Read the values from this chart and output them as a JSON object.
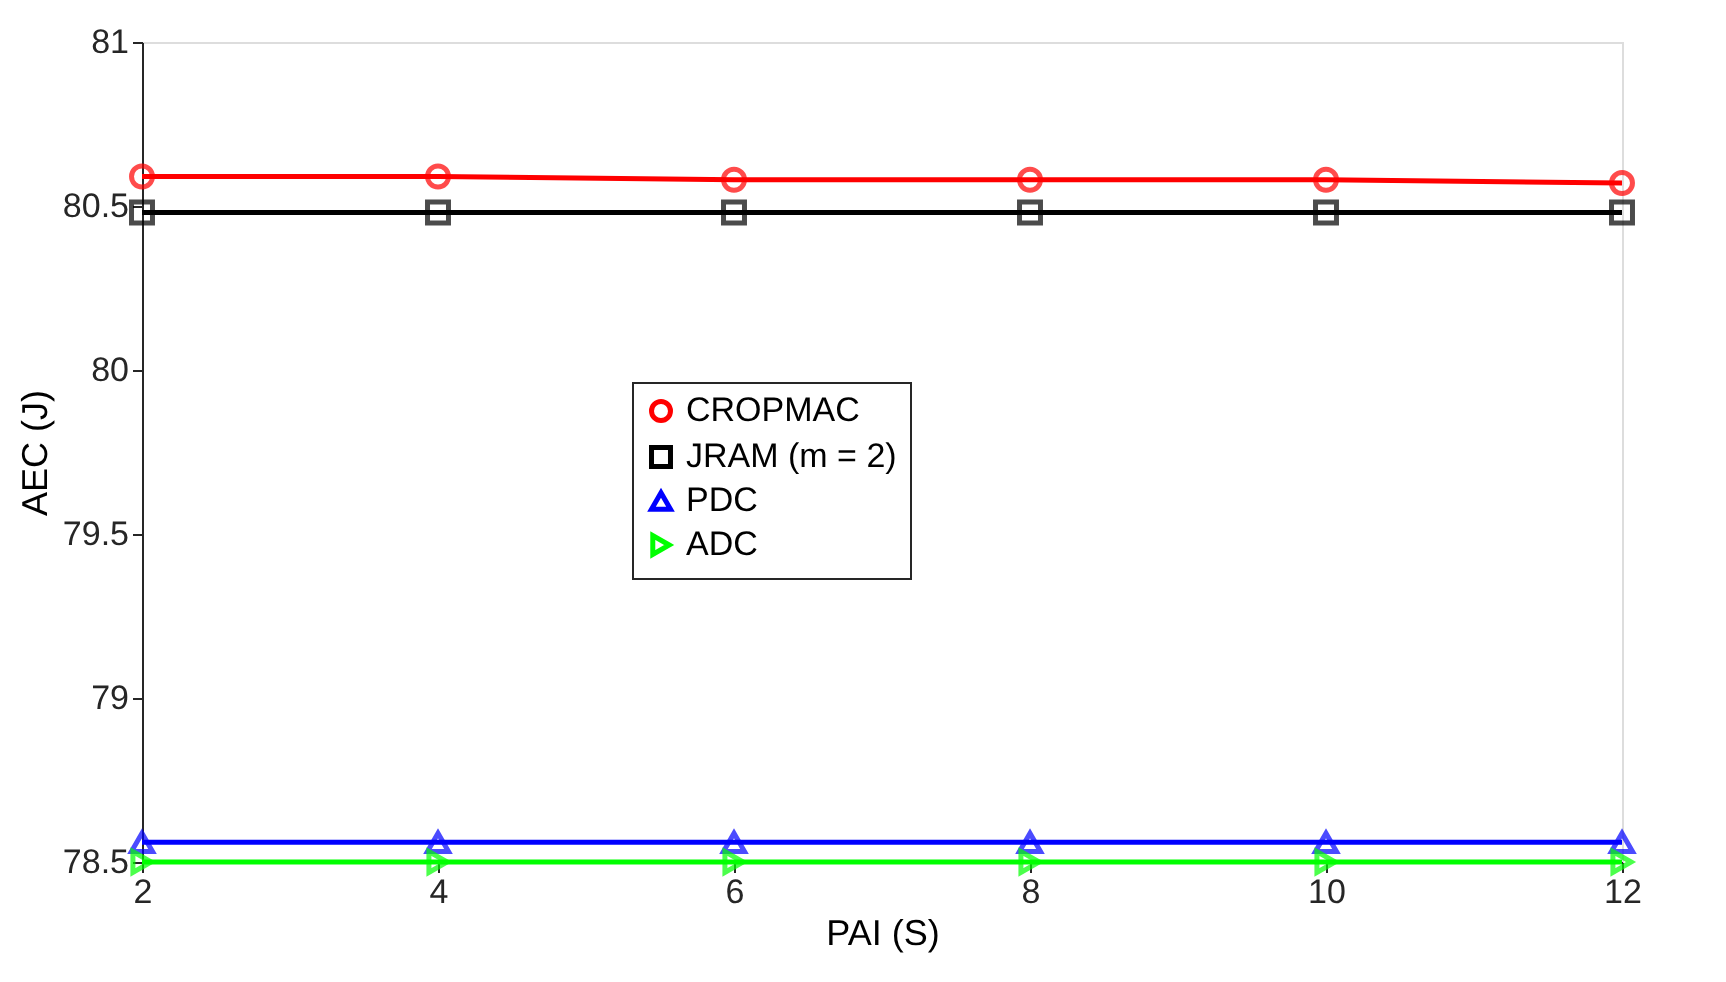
{
  "chart_data": {
    "type": "line",
    "xlabel": "PAI (S)",
    "ylabel": "AEC (J)",
    "x": [
      2,
      4,
      6,
      8,
      10,
      12
    ],
    "xlim": [
      2,
      12
    ],
    "xticks": [
      2,
      4,
      6,
      8,
      10,
      12
    ],
    "ylim": [
      78.5,
      81
    ],
    "yticks": [
      78.5,
      79,
      79.5,
      80,
      80.5,
      81
    ],
    "grid": false,
    "legend": "center",
    "line_style": "solid",
    "series": [
      {
        "name": "CROPMAC",
        "color": "#ff0000",
        "marker": "circle",
        "values": [
          80.59,
          80.59,
          80.58,
          80.58,
          80.58,
          80.57
        ]
      },
      {
        "name": "JRAM (m = 2)",
        "color": "#000000",
        "marker": "square",
        "values": [
          80.48,
          80.48,
          80.48,
          80.48,
          80.48,
          80.48
        ]
      },
      {
        "name": "PDC",
        "color": "#0000ff",
        "marker": "triangle",
        "values": [
          78.56,
          78.56,
          78.56,
          78.56,
          78.56,
          78.56
        ]
      },
      {
        "name": "ADC",
        "color": "#00ff00",
        "marker": "triangle-right",
        "values": [
          78.5,
          78.5,
          78.5,
          78.5,
          78.5,
          78.5
        ]
      }
    ]
  }
}
